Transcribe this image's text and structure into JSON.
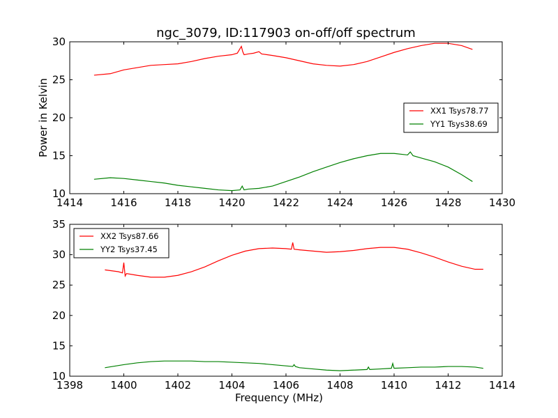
{
  "figure": {
    "title": "ngc_3079, ID:117903 on-off/off spectrum"
  },
  "chart_data": [
    {
      "type": "line",
      "title": "ngc_3079, ID:117903 on-off/off spectrum",
      "xlabel": "",
      "ylabel": "Power in Kelvin",
      "xlim": [
        1414,
        1430
      ],
      "ylim": [
        10,
        30
      ],
      "xticks": [
        "1414",
        "1416",
        "1418",
        "1420",
        "1422",
        "1424",
        "1426",
        "1428",
        "1430"
      ],
      "yticks": [
        "10",
        "15",
        "20",
        "25",
        "30"
      ],
      "legend_position": "right",
      "grid": false,
      "series": [
        {
          "name": "XX1 Tsys78.77",
          "color": "#ff0000",
          "x": [
            1414.9,
            1415.5,
            1416,
            1416.5,
            1417,
            1417.5,
            1418,
            1418.5,
            1419,
            1419.5,
            1420,
            1420.2,
            1420.35,
            1420.4,
            1420.45,
            1420.6,
            1420.8,
            1421,
            1421.1,
            1421.5,
            1422,
            1422.5,
            1423,
            1423.5,
            1424,
            1424.5,
            1425,
            1425.5,
            1426,
            1426.5,
            1427,
            1427.5,
            1428,
            1428.5,
            1428.9
          ],
          "y": [
            25.6,
            25.8,
            26.3,
            26.6,
            26.9,
            27.0,
            27.1,
            27.4,
            27.8,
            28.1,
            28.3,
            28.5,
            29.4,
            28.7,
            28.3,
            28.4,
            28.5,
            28.7,
            28.4,
            28.2,
            27.9,
            27.5,
            27.1,
            26.9,
            26.8,
            27.0,
            27.4,
            28.0,
            28.6,
            29.1,
            29.5,
            29.8,
            29.8,
            29.5,
            29.0
          ]
        },
        {
          "name": "YY1 Tsys38.69",
          "color": "#008000",
          "x": [
            1414.9,
            1415.5,
            1416,
            1416.5,
            1417,
            1417.5,
            1418,
            1418.5,
            1419,
            1419.5,
            1420,
            1420.3,
            1420.38,
            1420.45,
            1420.6,
            1421,
            1421.5,
            1422,
            1422.5,
            1423,
            1423.5,
            1424,
            1424.5,
            1425,
            1425.5,
            1426,
            1426.5,
            1426.6,
            1426.7,
            1427,
            1427.5,
            1428,
            1428.5,
            1428.9
          ],
          "y": [
            11.9,
            12.1,
            12.0,
            11.8,
            11.6,
            11.4,
            11.1,
            10.9,
            10.7,
            10.5,
            10.4,
            10.5,
            11.0,
            10.5,
            10.6,
            10.7,
            11.0,
            11.6,
            12.2,
            12.9,
            13.5,
            14.1,
            14.6,
            15.0,
            15.3,
            15.3,
            15.1,
            15.5,
            15.0,
            14.7,
            14.2,
            13.5,
            12.5,
            11.6
          ]
        }
      ]
    },
    {
      "type": "line",
      "title": "",
      "xlabel": "Frequency (MHz)",
      "ylabel": "",
      "xlim": [
        1398,
        1414
      ],
      "ylim": [
        10,
        35
      ],
      "xticks": [
        "1398",
        "1400",
        "1402",
        "1404",
        "1406",
        "1408",
        "1410",
        "1412",
        "1414"
      ],
      "yticks": [
        "10",
        "15",
        "20",
        "25",
        "30",
        "35"
      ],
      "legend_position": "upper-left",
      "grid": false,
      "series": [
        {
          "name": "XX2 Tsys87.66",
          "color": "#ff0000",
          "x": [
            1399.3,
            1399.8,
            1399.95,
            1400,
            1400.05,
            1400.1,
            1400.5,
            1401,
            1401.5,
            1402,
            1402.5,
            1403,
            1403.5,
            1404,
            1404.5,
            1405,
            1405.5,
            1406,
            1406.2,
            1406.25,
            1406.3,
            1406.5,
            1407,
            1407.5,
            1408,
            1408.5,
            1409,
            1409.5,
            1410,
            1410.5,
            1411,
            1411.5,
            1412,
            1412.5,
            1413,
            1413.3
          ],
          "y": [
            27.5,
            27.2,
            27.0,
            28.7,
            26.5,
            26.9,
            26.6,
            26.3,
            26.3,
            26.6,
            27.2,
            28.0,
            29.0,
            29.9,
            30.6,
            31.0,
            31.1,
            31.0,
            30.9,
            32.0,
            30.9,
            30.8,
            30.6,
            30.4,
            30.5,
            30.7,
            31.0,
            31.2,
            31.2,
            30.9,
            30.3,
            29.6,
            28.8,
            28.1,
            27.6,
            27.6
          ]
        },
        {
          "name": "YY2 Tsys37.45",
          "color": "#008000",
          "x": [
            1399.3,
            1400,
            1400.5,
            1401,
            1401.5,
            1402,
            1402.5,
            1403,
            1403.5,
            1404,
            1404.5,
            1405,
            1405.5,
            1406,
            1406.25,
            1406.3,
            1406.35,
            1406.5,
            1407,
            1407.5,
            1408,
            1408.5,
            1409,
            1409.05,
            1409.1,
            1409.5,
            1409.9,
            1409.95,
            1410,
            1410.5,
            1411,
            1411.5,
            1412,
            1412.5,
            1413,
            1413.3
          ],
          "y": [
            11.4,
            11.9,
            12.2,
            12.4,
            12.5,
            12.5,
            12.5,
            12.4,
            12.4,
            12.3,
            12.2,
            12.1,
            11.9,
            11.7,
            11.6,
            11.9,
            11.6,
            11.4,
            11.2,
            11.0,
            10.9,
            11.0,
            11.1,
            11.5,
            11.1,
            11.2,
            11.3,
            12.1,
            11.3,
            11.4,
            11.5,
            11.5,
            11.6,
            11.6,
            11.5,
            11.3
          ]
        }
      ]
    }
  ]
}
